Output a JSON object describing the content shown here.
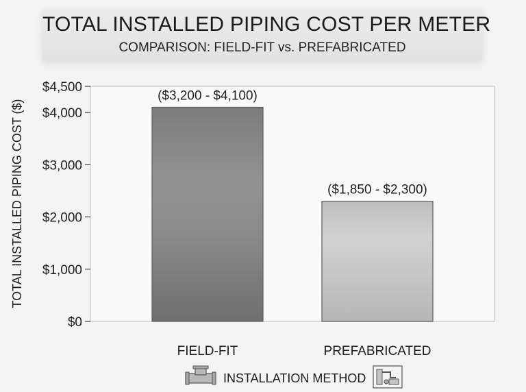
{
  "chart_data": {
    "type": "bar",
    "title": "TOTAL INSTALLED PIPING COST PER METER",
    "subtitle": "COMPARISON: FIELD-FIT vs. PREFABRICATED",
    "xlabel": "INSTALLATION METHOD",
    "ylabel": "TOTAL INSTALLED PIPING COST ($)",
    "categories": [
      "FIELD-FIT",
      "PREFABRICATED"
    ],
    "values": [
      4100,
      2300
    ],
    "bar_labels": [
      "($3,200 - $4,100)",
      "($1,850 - $2,300)"
    ],
    "ylim": [
      0,
      4500
    ],
    "yticks": [
      0,
      1000,
      2000,
      3000,
      4000,
      4500
    ],
    "ytick_labels": [
      "$0",
      "$1,000",
      "$2,000",
      "$3,000",
      "$4,000",
      "$4,500"
    ],
    "grid": false,
    "legend": "none"
  },
  "icons": [
    "pipe-tee-icon",
    "prefab-module-icon"
  ]
}
